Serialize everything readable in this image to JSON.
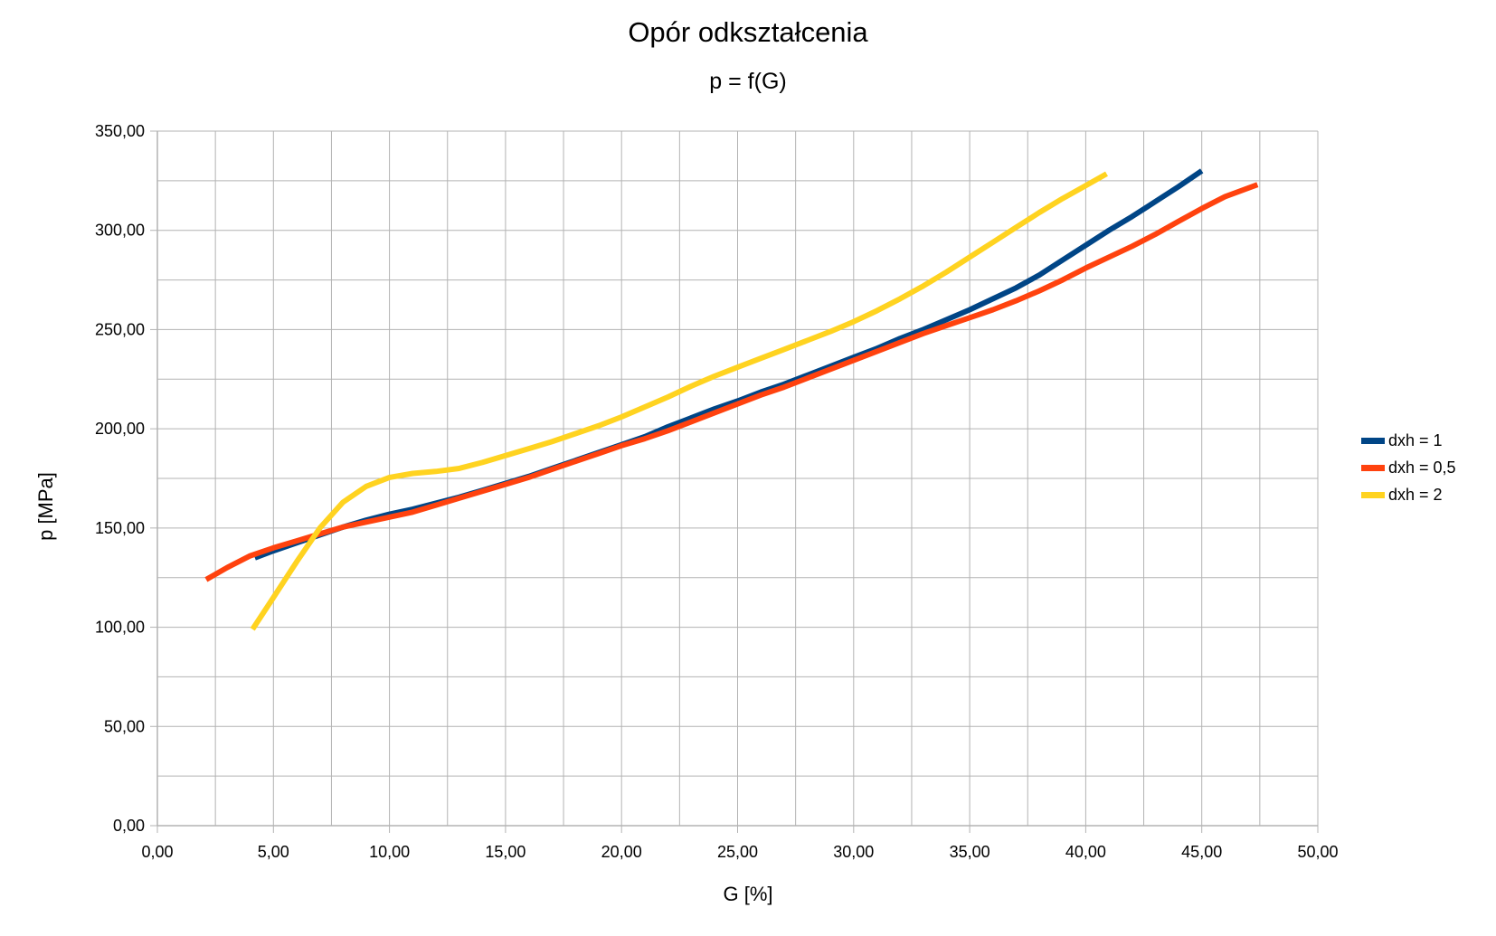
{
  "chart_data": {
    "type": "line",
    "title": "Opór odkształcenia",
    "subtitle": "p = f(G)",
    "xlabel": "G [%]",
    "ylabel": "p [MPa]",
    "xlim": [
      0,
      50
    ],
    "ylim": [
      0,
      350
    ],
    "x_ticks": [
      0,
      5,
      10,
      15,
      20,
      25,
      30,
      35,
      40,
      45,
      50
    ],
    "x_tick_labels": [
      "0,00",
      "5,00",
      "10,00",
      "15,00",
      "20,00",
      "25,00",
      "30,00",
      "35,00",
      "40,00",
      "45,00",
      "50,00"
    ],
    "y_ticks": [
      0,
      50,
      100,
      150,
      200,
      250,
      300,
      350
    ],
    "y_tick_labels": [
      "0,00",
      "50,00",
      "100,00",
      "150,00",
      "200,00",
      "250,00",
      "300,00",
      "350,00"
    ],
    "grid": true,
    "legend_position": "right",
    "series": [
      {
        "name": "dxh = 1",
        "color": "#004586",
        "points": [
          [
            4.2,
            135
          ],
          [
            5,
            138.5
          ],
          [
            6,
            142.5
          ],
          [
            7,
            146.5
          ],
          [
            8,
            150.5
          ],
          [
            9,
            154
          ],
          [
            10,
            157
          ],
          [
            11,
            159.5
          ],
          [
            12,
            162.5
          ],
          [
            13,
            165.5
          ],
          [
            14,
            169
          ],
          [
            15,
            172.5
          ],
          [
            16,
            176
          ],
          [
            17,
            180
          ],
          [
            18,
            184
          ],
          [
            19,
            188
          ],
          [
            20,
            192
          ],
          [
            21,
            196
          ],
          [
            22,
            201
          ],
          [
            23,
            205.5
          ],
          [
            24,
            210
          ],
          [
            25,
            214
          ],
          [
            26,
            218.5
          ],
          [
            27,
            222.5
          ],
          [
            28,
            227
          ],
          [
            29,
            231.5
          ],
          [
            30,
            236
          ],
          [
            31,
            240.5
          ],
          [
            32,
            245.5
          ],
          [
            33,
            250
          ],
          [
            34,
            255
          ],
          [
            35,
            260
          ],
          [
            36,
            265.5
          ],
          [
            37,
            271
          ],
          [
            38,
            277.5
          ],
          [
            39,
            285
          ],
          [
            40,
            292.5
          ],
          [
            41,
            300
          ],
          [
            42,
            307
          ],
          [
            43,
            314.5
          ],
          [
            44,
            322
          ],
          [
            45,
            330
          ]
        ]
      },
      {
        "name": "dxh = 0,5",
        "color": "#ff420e",
        "points": [
          [
            2.1,
            124
          ],
          [
            3,
            130
          ],
          [
            4,
            136
          ],
          [
            5,
            140
          ],
          [
            6,
            143.5
          ],
          [
            7,
            147
          ],
          [
            8,
            150.5
          ],
          [
            9,
            153
          ],
          [
            10,
            155.5
          ],
          [
            11,
            158
          ],
          [
            12,
            161.5
          ],
          [
            13,
            165
          ],
          [
            14,
            168.5
          ],
          [
            15,
            172
          ],
          [
            16,
            175.5
          ],
          [
            17,
            179.5
          ],
          [
            18,
            183.5
          ],
          [
            19,
            187.5
          ],
          [
            20,
            191.5
          ],
          [
            21,
            195
          ],
          [
            22,
            199
          ],
          [
            23,
            203.5
          ],
          [
            24,
            208
          ],
          [
            25,
            212.5
          ],
          [
            26,
            217
          ],
          [
            27,
            221
          ],
          [
            28,
            225.5
          ],
          [
            29,
            230
          ],
          [
            30,
            234.5
          ],
          [
            31,
            239
          ],
          [
            32,
            243.5
          ],
          [
            33,
            248
          ],
          [
            34,
            252
          ],
          [
            35,
            256
          ],
          [
            36,
            260
          ],
          [
            37,
            264.5
          ],
          [
            38,
            269.5
          ],
          [
            39,
            275
          ],
          [
            40,
            281
          ],
          [
            41,
            286.5
          ],
          [
            42,
            292
          ],
          [
            43,
            298
          ],
          [
            44,
            304.5
          ],
          [
            45,
            311
          ],
          [
            46,
            317
          ],
          [
            47.4,
            323
          ]
        ]
      },
      {
        "name": "dxh = 2",
        "color": "#ffd320",
        "points": [
          [
            4.1,
            99
          ],
          [
            5,
            115
          ],
          [
            6,
            133
          ],
          [
            7,
            150
          ],
          [
            8,
            163
          ],
          [
            9,
            171
          ],
          [
            10,
            175.5
          ],
          [
            11,
            177.5
          ],
          [
            12,
            178.5
          ],
          [
            13,
            180
          ],
          [
            14,
            183
          ],
          [
            15,
            186.5
          ],
          [
            16,
            190
          ],
          [
            17,
            193.5
          ],
          [
            18,
            197.5
          ],
          [
            19,
            201.5
          ],
          [
            20,
            206
          ],
          [
            21,
            211
          ],
          [
            22,
            216
          ],
          [
            23,
            221.5
          ],
          [
            24,
            226.5
          ],
          [
            25,
            231
          ],
          [
            26,
            235.5
          ],
          [
            27,
            240
          ],
          [
            28,
            244.5
          ],
          [
            29,
            249
          ],
          [
            30,
            254
          ],
          [
            31,
            259.5
          ],
          [
            32,
            265.5
          ],
          [
            33,
            272
          ],
          [
            34,
            279
          ],
          [
            35,
            286.5
          ],
          [
            36,
            294
          ],
          [
            37,
            301.5
          ],
          [
            38,
            309
          ],
          [
            39,
            316
          ],
          [
            40,
            322.5
          ],
          [
            40.9,
            328.5
          ]
        ]
      }
    ]
  }
}
